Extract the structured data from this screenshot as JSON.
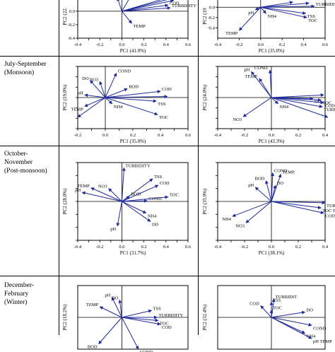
{
  "rows": [
    {
      "label_lines": [],
      "label_top": 0
    },
    {
      "label_lines": [
        "July-September",
        "(Monsoon)"
      ],
      "label_top": 85
    },
    {
      "label_lines": [
        "October-",
        "November",
        "(Post-monsoon)"
      ],
      "label_top": 212
    },
    {
      "label_lines": [
        "December-",
        "February",
        "(Winter)"
      ],
      "label_top": 398
    }
  ],
  "axis_color": "#000000",
  "arrow_color": "#1f2a9a",
  "chart_data": [
    {
      "type": "scatter",
      "panel": "r0c0",
      "xlabel": "PC1 (41.0%)",
      "ylabel": "PC2 (22.",
      "xlim": [
        -0.4,
        0.6
      ],
      "ylim": [
        -0.4,
        0.25
      ],
      "xticks": [
        -0.4,
        -0.3,
        -0.2,
        -0.1,
        0.0,
        0.1,
        0.2,
        0.3,
        0.4,
        0.5,
        0.6
      ],
      "xtick_labels": [
        "-0.4",
        "",
        "-0.2",
        "",
        "0.0",
        "",
        "0.2",
        "",
        "0.4",
        "",
        "0.6"
      ],
      "yticks": [
        -0.4,
        -0.2,
        0.0,
        0.2
      ],
      "ytick_labels": [
        "-0.4",
        "-0.2",
        "0.0",
        "0.2"
      ],
      "vectors": [
        {
          "label": "TOC",
          "x": 0.47,
          "y": 0.16
        },
        {
          "label": "COD",
          "x": 0.42,
          "y": 0.09
        },
        {
          "label": "TURBIDITY",
          "x": 0.44,
          "y": 0.05
        },
        {
          "label": "",
          "x": 0.5,
          "y": 0.24
        },
        {
          "label": "",
          "x": 0.48,
          "y": 0.2
        },
        {
          "label": "",
          "x": 0.08,
          "y": 0.22
        },
        {
          "label": "",
          "x": -0.04,
          "y": 0.2
        },
        {
          "label": "TEMP",
          "x": 0.09,
          "y": -0.18
        }
      ]
    },
    {
      "type": "scatter",
      "panel": "r0c1",
      "xlabel": "PC1 (35.0%)",
      "ylabel": "PC2 (19",
      "xlim": [
        -0.4,
        0.6
      ],
      "ylim": [
        -0.6,
        0.25
      ],
      "xticks": [
        -0.4,
        -0.2,
        0.0,
        0.2,
        0.4,
        0.6
      ],
      "xtick_labels": [
        "-0.4",
        "-0.2",
        "0.0",
        "0.2",
        "0.4",
        "0.6"
      ],
      "yticks": [
        -0.4,
        -0.2,
        0.0,
        0.2
      ],
      "ytick_labels": [
        "-0.4",
        "-0.2",
        "0.0",
        ""
      ],
      "vectors": [
        {
          "label": "TURBIDITY",
          "x": 0.5,
          "y": 0.02
        },
        {
          "label": "pH",
          "x": -0.05,
          "y": -0.05
        },
        {
          "label": "NH4",
          "x": 0.05,
          "y": -0.12
        },
        {
          "label": "TSS",
          "x": 0.42,
          "y": -0.12
        },
        {
          "label": "TOC",
          "x": 0.43,
          "y": -0.2
        },
        {
          "label": "TEMP",
          "x": -0.2,
          "y": -0.45
        },
        {
          "label": "",
          "x": 0.3,
          "y": 0.1
        },
        {
          "label": "",
          "x": 0.45,
          "y": 0.08
        }
      ]
    },
    {
      "type": "scatter",
      "panel": "r1c0",
      "xlabel": "PC1 (35.0%)",
      "ylabel": "PC2 (19.0%)",
      "xlim": [
        -0.2,
        0.6
      ],
      "ylim": [
        -0.6,
        0.6
      ],
      "xticks": [
        -0.2,
        -0.1,
        0.0,
        0.1,
        0.2,
        0.3,
        0.4,
        0.5,
        0.6
      ],
      "xtick_labels": [
        "-0.2",
        "",
        "0.0",
        "",
        "0.2",
        "",
        "0.4",
        "",
        "0.6"
      ],
      "yticks": [
        -0.6,
        -0.4,
        -0.2,
        0.0,
        0.2,
        0.4,
        0.6
      ],
      "ytick_labels": [
        "",
        "",
        "",
        "",
        "",
        "",
        ""
      ],
      "vectors": [
        {
          "label": "COND",
          "x": 0.08,
          "y": 0.47
        },
        {
          "label": "DO",
          "x": -0.11,
          "y": 0.33
        },
        {
          "label": "NO3",
          "x": -0.04,
          "y": 0.31
        },
        {
          "label": "BOD",
          "x": 0.16,
          "y": 0.17
        },
        {
          "label": "COD",
          "x": 0.4,
          "y": 0.12
        },
        {
          "label": "pH",
          "x": -0.15,
          "y": 0.05
        },
        {
          "label": "TEMP",
          "x": -0.15,
          "y": -0.17
        },
        {
          "label": "NH4",
          "x": 0.05,
          "y": -0.12
        },
        {
          "label": "TSS",
          "x": 0.37,
          "y": -0.07
        },
        {
          "label": "TOC",
          "x": 0.38,
          "y": -0.33
        },
        {
          "label": "",
          "x": -0.2,
          "y": -0.38
        },
        {
          "label": "",
          "x": 0.45,
          "y": 0.02
        }
      ]
    },
    {
      "type": "scatter",
      "panel": "r1c1",
      "xlabel": "PC1 (43.3%)",
      "ylabel": "PC2 (24.0%)",
      "xlim": [
        -0.4,
        0.4
      ],
      "ylim": [
        -0.6,
        0.6
      ],
      "xticks": [
        -0.4,
        -0.3,
        -0.2,
        -0.1,
        0.0,
        0.1,
        0.2,
        0.3,
        0.4
      ],
      "xtick_labels": [
        "-0.4",
        "",
        "-0.2",
        "",
        "0.0",
        "",
        "0.2",
        "",
        "0.4"
      ],
      "yticks": [
        -0.6,
        -0.4,
        -0.2,
        0.0,
        0.2,
        0.4,
        0.6
      ],
      "ytick_labels": [
        "",
        "",
        "",
        "",
        "",
        "",
        ""
      ],
      "vectors": [
        {
          "label": "pH",
          "x": -0.15,
          "y": 0.5
        },
        {
          "label": "COND.",
          "x": -0.01,
          "y": 0.53
        },
        {
          "label": "TEMP.",
          "x": -0.09,
          "y": 0.37
        },
        {
          "label": "NH4",
          "x": 0.05,
          "y": -0.12
        },
        {
          "label": "DO",
          "x": 0.31,
          "y": -0.02
        },
        {
          "label": "TOC",
          "x": 0.37,
          "y": -0.05
        },
        {
          "label": "COD",
          "x": 0.39,
          "y": -0.1
        },
        {
          "label": "TURBIDITY",
          "x": 0.38,
          "y": -0.18
        },
        {
          "label": "NO3",
          "x": -0.21,
          "y": -0.37
        },
        {
          "label": "",
          "x": 0.39,
          "y": 0.05
        },
        {
          "label": "",
          "x": 0.42,
          "y": -0.38
        }
      ]
    },
    {
      "type": "scatter",
      "panel": "r2c0",
      "xlabel": "PC1 (31.7%)",
      "ylabel": "PC2 (28.0%)",
      "xlim": [
        -0.4,
        0.6
      ],
      "ylim": [
        -0.6,
        0.6
      ],
      "xticks": [
        -0.4,
        -0.3,
        -0.2,
        -0.1,
        0.0,
        0.1,
        0.2,
        0.3,
        0.4,
        0.5,
        0.6
      ],
      "xtick_labels": [
        "-0.4",
        "",
        "-0.2",
        "",
        "0.0",
        "",
        "0.2",
        "",
        "0.4",
        "",
        "0.6"
      ],
      "yticks": [
        -0.6,
        -0.4,
        -0.2,
        0.0,
        0.2,
        0.4,
        0.6
      ],
      "ytick_labels": [
        "",
        "",
        "",
        "",
        "",
        "",
        ""
      ],
      "vectors": [
        {
          "label": "TURBIDITY",
          "x": 0.02,
          "y": 0.52
        },
        {
          "label": "TSS",
          "x": 0.28,
          "y": 0.35
        },
        {
          "label": "COD",
          "x": 0.33,
          "y": 0.25
        },
        {
          "label": "TEMP",
          "x": -0.28,
          "y": 0.21
        },
        {
          "label": "NO3",
          "x": -0.12,
          "y": 0.2
        },
        {
          "label": "pH",
          "x": -0.36,
          "y": 0.14
        },
        {
          "label": "BOD",
          "x": 0.07,
          "y": 0.08
        },
        {
          "label": "COND.",
          "x": 0.23,
          "y": 0.01
        },
        {
          "label": "TOC",
          "x": 0.42,
          "y": 0.07
        },
        {
          "label": "NH4",
          "x": 0.22,
          "y": -0.18
        },
        {
          "label": "DO",
          "x": 0.26,
          "y": -0.31
        },
        {
          "label": "pH",
          "x": -0.04,
          "y": -0.38
        }
      ]
    },
    {
      "type": "scatter",
      "panel": "r2c1",
      "xlabel": "PC1 (38.1%)",
      "ylabel": "PC2 (35.9%)",
      "xlim": [
        -0.4,
        0.4
      ],
      "ylim": [
        -0.6,
        0.6
      ],
      "xticks": [
        -0.4,
        -0.3,
        -0.2,
        -0.1,
        0.0,
        0.1,
        0.2,
        0.3,
        0.4
      ],
      "xtick_labels": [
        "-0.4",
        "",
        "-0.2",
        "",
        "0.0",
        "",
        "0.2",
        "",
        "0.4"
      ],
      "yticks": [
        -0.6,
        -0.4,
        -0.2,
        0.0,
        0.2,
        0.4,
        0.6
      ],
      "ytick_labels": [
        "",
        "",
        "",
        "",
        "",
        "",
        ""
      ],
      "vectors": [
        {
          "label": "COND",
          "x": 0.01,
          "y": 0.44
        },
        {
          "label": "TEMP.",
          "x": 0.07,
          "y": 0.42
        },
        {
          "label": "BOD",
          "x": -0.04,
          "y": 0.32
        },
        {
          "label": "pH",
          "x": -0.12,
          "y": 0.22
        },
        {
          "label": "DO",
          "x": 0.03,
          "y": 0.25
        },
        {
          "label": "TURBIDITY",
          "x": 0.4,
          "y": -0.02
        },
        {
          "label": "TOC TSS",
          "x": 0.37,
          "y": -0.1
        },
        {
          "label": "COD",
          "x": 0.39,
          "y": -0.18
        },
        {
          "label": "NH4",
          "x": -0.29,
          "y": -0.23
        },
        {
          "label": "NO3",
          "x": -0.19,
          "y": -0.33
        }
      ]
    },
    {
      "type": "scatter",
      "panel": "r3c0",
      "xlabel": "",
      "ylabel": "PC2 (18.2%)",
      "xlim": [
        -0.4,
        0.6
      ],
      "ylim": [
        -0.6,
        0.6
      ],
      "xticks": [],
      "xtick_labels": [],
      "yticks": [],
      "ytick_labels": [],
      "vectors": [
        {
          "label": "pH",
          "x": -0.09,
          "y": 0.38
        },
        {
          "label": "DO",
          "x": -0.02,
          "y": 0.33
        },
        {
          "label": "TEMP",
          "x": -0.2,
          "y": 0.2
        },
        {
          "label": "TSS",
          "x": 0.27,
          "y": 0.13
        },
        {
          "label": "TURBIDITY",
          "x": 0.32,
          "y": 0.0
        },
        {
          "label": "TOC",
          "x": 0.33,
          "y": -0.06
        },
        {
          "label": "COD",
          "x": 0.35,
          "y": -0.13
        },
        {
          "label": "BOD",
          "x": -0.21,
          "y": -0.5
        },
        {
          "label": "COND.",
          "x": 0.15,
          "y": -0.6
        }
      ]
    },
    {
      "type": "scatter",
      "panel": "r3c1",
      "xlabel": "",
      "ylabel": "PC2 (32.4%)",
      "xlim": [
        -0.4,
        0.4
      ],
      "ylim": [
        -0.6,
        0.6
      ],
      "xticks": [],
      "xtick_labels": [],
      "yticks": [],
      "ytick_labels": [],
      "vectors": [
        {
          "label": "TURBIDIT",
          "x": 0.02,
          "y": 0.35
        },
        {
          "label": "TSS",
          "x": 0.0,
          "y": 0.29
        },
        {
          "label": "COD",
          "x": -0.08,
          "y": 0.22
        },
        {
          "label": "TOC",
          "x": 0.0,
          "y": 0.14
        },
        {
          "label": "DO",
          "x": 0.25,
          "y": 0.1
        },
        {
          "label": "COND",
          "x": 0.3,
          "y": -0.15
        },
        {
          "label": "NH4",
          "x": 0.25,
          "y": -0.3
        },
        {
          "label": "pH TEMP",
          "x": 0.3,
          "y": -0.4
        }
      ]
    }
  ]
}
